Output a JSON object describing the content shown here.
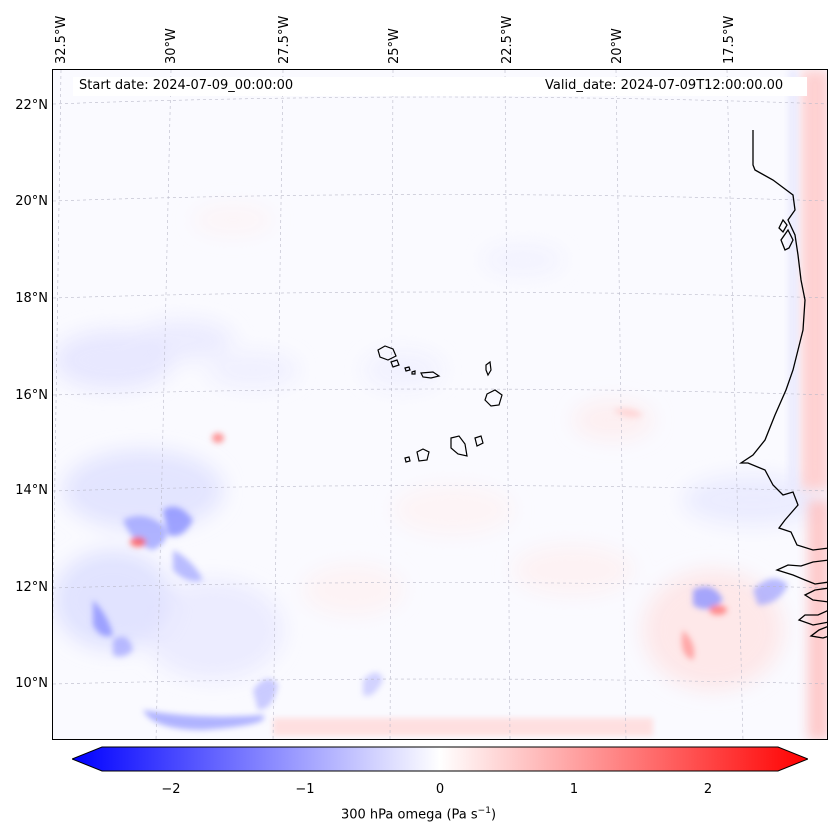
{
  "map": {
    "start_date": "Start date: 2024-07-09_00:00:00",
    "valid_date": "Valid_date: 2024-07-09T12:00:00.00",
    "lon_labels": [
      "32.5°W",
      "30°W",
      "27.5°W",
      "25°W",
      "22.5°W",
      "20°W",
      "17.5°W"
    ],
    "lat_labels": [
      "22°N",
      "20°N",
      "18°N",
      "16°N",
      "14°N",
      "12°N",
      "10°N"
    ],
    "region": "Cabo Verde and West African coast",
    "colormap": "bwr",
    "colors": {
      "negative": "#0000ff",
      "neutral": "#ffffff",
      "positive": "#ff0000",
      "coast": "#000000",
      "grid": "#aaaaaa"
    }
  },
  "colorbar": {
    "ticks": [
      "−2",
      "−1",
      "0",
      "1",
      "2"
    ],
    "range": [
      -2.6,
      2.6
    ],
    "label": "300 hPa omega (Pa s",
    "label_sup": "−1",
    "label_end": ")"
  }
}
